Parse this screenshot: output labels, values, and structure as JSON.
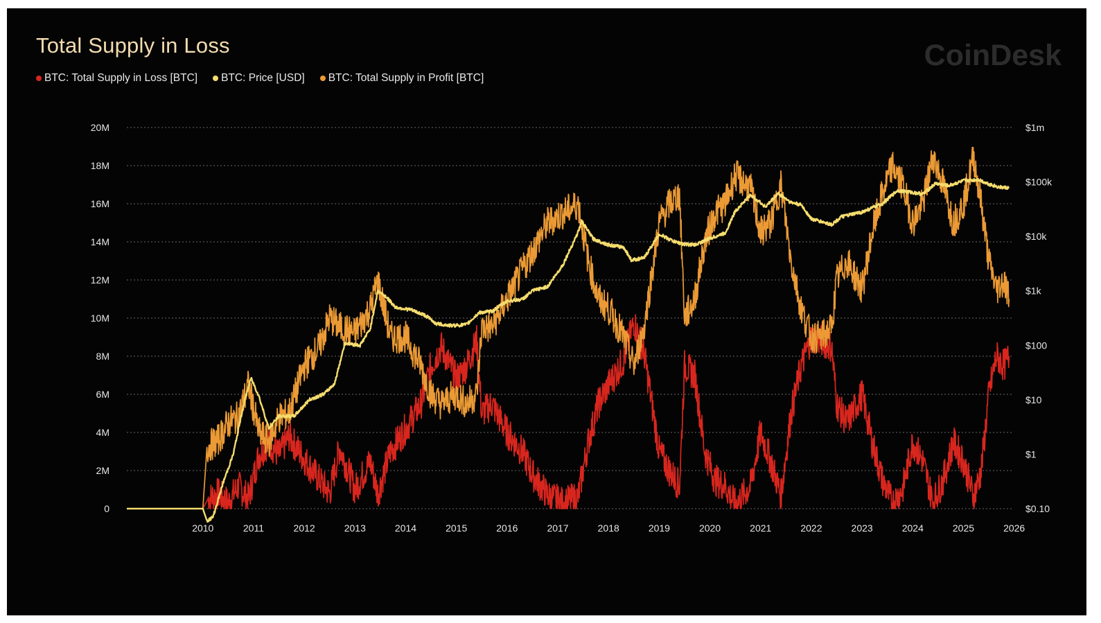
{
  "title": "Total Supply in Loss",
  "watermark": "CoinDesk",
  "colors": {
    "background": "#040404",
    "supply_in_loss": "#d8261e",
    "price": "#f5dc6e",
    "supply_in_profit": "#eb9a35",
    "grid": "#6a6a6a",
    "axis_text": "#e6e6e6"
  },
  "legend": [
    {
      "label": "BTC: Total Supply in Loss [BTC]",
      "color": "#d8261e"
    },
    {
      "label": "BTC: Price [USD]",
      "color": "#f5dc6e"
    },
    {
      "label": "BTC: Total Supply in Profit [BTC]",
      "color": "#eb9a35"
    }
  ],
  "chart_data": {
    "type": "line",
    "title": "Total Supply in Loss",
    "grid": true,
    "legend_position": "top-left",
    "x_range": [
      2009.0,
      2026.45
    ],
    "x_ticks": [
      "2010",
      "2011",
      "2012",
      "2013",
      "2014",
      "2015",
      "2016",
      "2017",
      "2018",
      "2019",
      "2020",
      "2021",
      "2022",
      "2023",
      "2024",
      "2025",
      "2026"
    ],
    "y_left": {
      "range": [
        0,
        20000000
      ],
      "tick_values": [
        0,
        2000000,
        4000000,
        6000000,
        8000000,
        10000000,
        12000000,
        14000000,
        16000000,
        18000000,
        20000000
      ],
      "tick_labels": [
        "0",
        "2M",
        "4M",
        "6M",
        "8M",
        "10M",
        "12M",
        "14M",
        "16M",
        "18M",
        "20M"
      ]
    },
    "y_right": {
      "scale": "log",
      "range": [
        0.1,
        1000000
      ],
      "tick_values": [
        0.1,
        1,
        10,
        100,
        1000,
        10000,
        100000,
        1000000
      ],
      "tick_labels": [
        "$0.10",
        "$1",
        "$10",
        "$100",
        "$1k",
        "$10k",
        "$100k",
        "$1m"
      ]
    },
    "series": [
      {
        "name": "BTC: Total Supply in Loss [BTC]",
        "axis": "left",
        "color": "#d8261e",
        "x": [
          2009.0,
          2010.5,
          2010.6,
          2010.8,
          2011.0,
          2011.2,
          2011.4,
          2011.6,
          2011.8,
          2012.0,
          2012.2,
          2012.5,
          2012.8,
          2013.0,
          2013.2,
          2013.5,
          2013.8,
          2013.95,
          2014.2,
          2014.5,
          2014.8,
          2015.0,
          2015.2,
          2015.5,
          2015.7,
          2015.9,
          2016.0,
          2016.2,
          2016.5,
          2016.8,
          2017.0,
          2017.3,
          2017.6,
          2017.9,
          2018.1,
          2018.3,
          2018.5,
          2018.8,
          2019.0,
          2019.2,
          2019.5,
          2019.7,
          2019.9,
          2020.0,
          2020.2,
          2020.4,
          2020.6,
          2020.8,
          2021.0,
          2021.3,
          2021.5,
          2021.7,
          2021.9,
          2022.1,
          2022.3,
          2022.5,
          2022.7,
          2022.9,
          2023.0,
          2023.2,
          2023.5,
          2023.7,
          2023.9,
          2024.1,
          2024.3,
          2024.5,
          2024.7,
          2024.9,
          2025.1,
          2025.3,
          2025.5,
          2025.7,
          2025.85,
          2026.0,
          2026.15,
          2026.3,
          2026.4
        ],
        "values": [
          0,
          0,
          500000,
          800000,
          300000,
          1200000,
          500000,
          2800000,
          3500000,
          2800000,
          3800000,
          2600000,
          1500000,
          800000,
          3200000,
          1000000,
          2500000,
          800000,
          3000000,
          4200000,
          5500000,
          7500000,
          8500000,
          6800000,
          7500000,
          8800000,
          5000000,
          5500000,
          4000000,
          3000000,
          1800000,
          700000,
          300000,
          600000,
          3500000,
          5500000,
          6500000,
          7800000,
          9800000,
          8200000,
          3000000,
          2000000,
          1200000,
          7500000,
          7000000,
          3000000,
          1500000,
          1200000,
          200000,
          1200000,
          4000000,
          2500000,
          700000,
          5000000,
          7500000,
          9000000,
          8800000,
          8500000,
          5500000,
          4500000,
          6000000,
          3500000,
          1500000,
          300000,
          1000000,
          3500000,
          2500000,
          300000,
          1500000,
          3500000,
          2500000,
          600000,
          2000000,
          6000000,
          8000000,
          7500000,
          8000000
        ]
      },
      {
        "name": "BTC: Price [USD]",
        "axis": "right",
        "color": "#f5dc6e",
        "x": [
          2009.0,
          2010.5,
          2010.58,
          2010.7,
          2010.9,
          2011.1,
          2011.3,
          2011.45,
          2011.6,
          2011.8,
          2012.0,
          2012.3,
          2012.6,
          2012.9,
          2013.1,
          2013.3,
          2013.6,
          2013.8,
          2013.95,
          2014.1,
          2014.3,
          2014.6,
          2014.9,
          2015.1,
          2015.4,
          2015.7,
          2015.95,
          2016.2,
          2016.5,
          2016.8,
          2017.0,
          2017.3,
          2017.6,
          2017.9,
          2017.97,
          2018.2,
          2018.5,
          2018.8,
          2018.95,
          2019.2,
          2019.5,
          2019.8,
          2020.0,
          2020.2,
          2020.5,
          2020.8,
          2021.0,
          2021.3,
          2021.6,
          2021.85,
          2022.1,
          2022.3,
          2022.5,
          2022.9,
          2023.1,
          2023.5,
          2023.9,
          2024.2,
          2024.4,
          2024.7,
          2024.95,
          2025.2,
          2025.5,
          2025.8,
          2026.0,
          2026.2,
          2026.4
        ],
        "values": [
          0.1,
          0.1,
          0.06,
          0.07,
          0.3,
          1,
          8,
          25,
          12,
          3,
          5,
          5,
          10,
          13,
          20,
          110,
          100,
          200,
          1000,
          800,
          500,
          450,
          350,
          250,
          230,
          240,
          400,
          420,
          650,
          700,
          1000,
          1200,
          3000,
          12000,
          19000,
          9000,
          7000,
          6300,
          3700,
          4000,
          11000,
          8000,
          7200,
          7000,
          9200,
          11500,
          29000,
          58000,
          35000,
          62000,
          42000,
          38000,
          21000,
          16500,
          23000,
          28000,
          40000,
          70000,
          66000,
          60000,
          94000,
          85000,
          105000,
          110000,
          92000,
          80000,
          78000
        ]
      },
      {
        "name": "BTC: Total Supply in Profit [BTC]",
        "axis": "left",
        "color": "#eb9a35",
        "x": [
          2009.0,
          2010.5,
          2010.58,
          2010.8,
          2011.0,
          2011.2,
          2011.4,
          2011.6,
          2011.8,
          2012.0,
          2012.2,
          2012.5,
          2012.8,
          2013.0,
          2013.2,
          2013.5,
          2013.8,
          2013.95,
          2014.2,
          2014.5,
          2014.8,
          2015.0,
          2015.2,
          2015.5,
          2015.7,
          2015.9,
          2016.0,
          2016.2,
          2016.5,
          2016.8,
          2017.0,
          2017.3,
          2017.6,
          2017.9,
          2018.1,
          2018.3,
          2018.5,
          2018.8,
          2019.0,
          2019.2,
          2019.5,
          2019.7,
          2019.9,
          2020.0,
          2020.2,
          2020.4,
          2020.6,
          2020.8,
          2021.0,
          2021.3,
          2021.5,
          2021.7,
          2021.9,
          2022.1,
          2022.3,
          2022.5,
          2022.7,
          2022.9,
          2023.0,
          2023.2,
          2023.5,
          2023.7,
          2023.9,
          2024.1,
          2024.3,
          2024.5,
          2024.7,
          2024.9,
          2025.1,
          2025.3,
          2025.5,
          2025.7,
          2025.85,
          2026.0,
          2026.15,
          2026.3,
          2026.4
        ],
        "values": [
          0,
          0,
          3200000,
          3600000,
          4500000,
          4800000,
          6500000,
          4000000,
          3500000,
          4800000,
          5000000,
          7500000,
          8500000,
          10000000,
          9500000,
          9200000,
          10500000,
          12000000,
          9000000,
          9000000,
          7500000,
          6000000,
          5500000,
          6000000,
          5500000,
          6000000,
          9500000,
          9500000,
          11000000,
          12500000,
          13500000,
          15000000,
          15500000,
          16000000,
          13000000,
          11000000,
          10500000,
          9000000,
          7500000,
          9500000,
          15000000,
          16000000,
          16500000,
          10000000,
          11000000,
          14000000,
          15500000,
          16000000,
          17500000,
          16800000,
          14500000,
          15000000,
          17000000,
          13000000,
          10500000,
          9000000,
          9000000,
          9500000,
          12000000,
          13000000,
          11500000,
          14500000,
          16500000,
          18000000,
          17000000,
          15000000,
          16000000,
          18500000,
          17000000,
          15000000,
          16000000,
          18500000,
          16000000,
          13000000,
          11500000,
          12000000,
          11000000
        ]
      }
    ]
  }
}
